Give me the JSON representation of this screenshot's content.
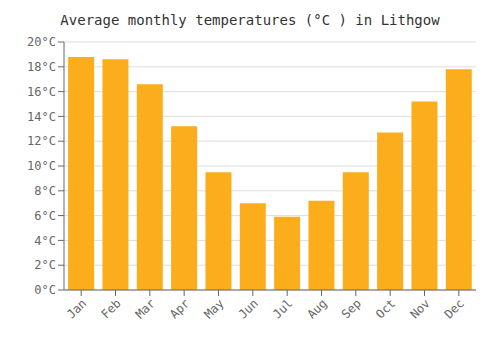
{
  "chart_data": {
    "type": "bar",
    "title": "Average monthly temperatures (°C ) in Lithgow",
    "categories": [
      "Jan",
      "Feb",
      "Mar",
      "Apr",
      "May",
      "Jun",
      "Jul",
      "Aug",
      "Sep",
      "Oct",
      "Nov",
      "Dec"
    ],
    "values": [
      18.8,
      18.6,
      16.6,
      13.2,
      9.5,
      7.0,
      5.9,
      7.2,
      9.5,
      12.7,
      15.2,
      17.8
    ],
    "color": "#FBAD1C",
    "ylim": [
      0,
      20
    ],
    "yticks": [
      {
        "value": 0,
        "label": "0°C"
      },
      {
        "value": 2,
        "label": "2°C"
      },
      {
        "value": 4,
        "label": "4°C"
      },
      {
        "value": 6,
        "label": "6°C"
      },
      {
        "value": 8,
        "label": "8°C"
      },
      {
        "value": 10,
        "label": "10°C"
      },
      {
        "value": 12,
        "label": "12°C"
      },
      {
        "value": 14,
        "label": "14°C"
      },
      {
        "value": 16,
        "label": "16°C"
      },
      {
        "value": 18,
        "label": "18°C"
      },
      {
        "value": 20,
        "label": "20°C"
      }
    ],
    "grid": true
  }
}
